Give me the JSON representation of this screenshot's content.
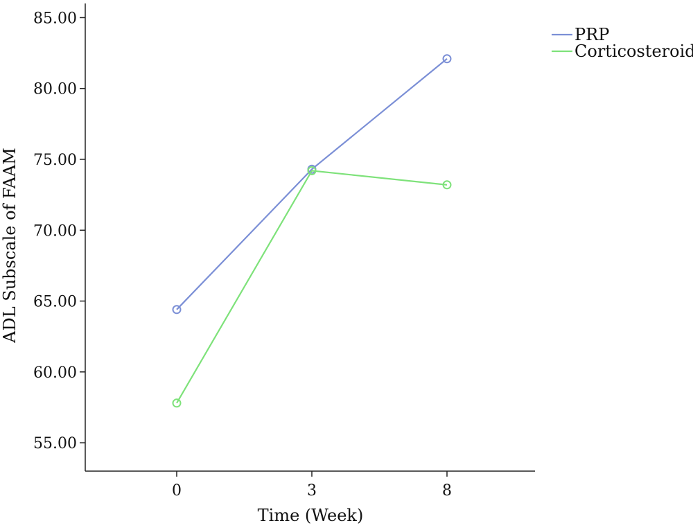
{
  "chart_data": {
    "type": "line",
    "title": "",
    "xlabel": "Time (Week)",
    "ylabel": "ADL Subscale of FAAM",
    "categories": [
      "0",
      "3",
      "8"
    ],
    "ylim": [
      53,
      86
    ],
    "yticks": [
      "55.00",
      "60.00",
      "65.00",
      "70.00",
      "75.00",
      "80.00",
      "85.00"
    ],
    "grid": false,
    "legend_position": "top-right",
    "series": [
      {
        "name": "PRP",
        "values": [
          64.4,
          74.3,
          82.1
        ],
        "color": "#7b8fd6",
        "marker": "circle-open"
      },
      {
        "name": "Corticosteroid",
        "values": [
          57.8,
          74.2,
          73.2
        ],
        "color": "#7ee27a",
        "marker": "circle-open"
      }
    ]
  }
}
